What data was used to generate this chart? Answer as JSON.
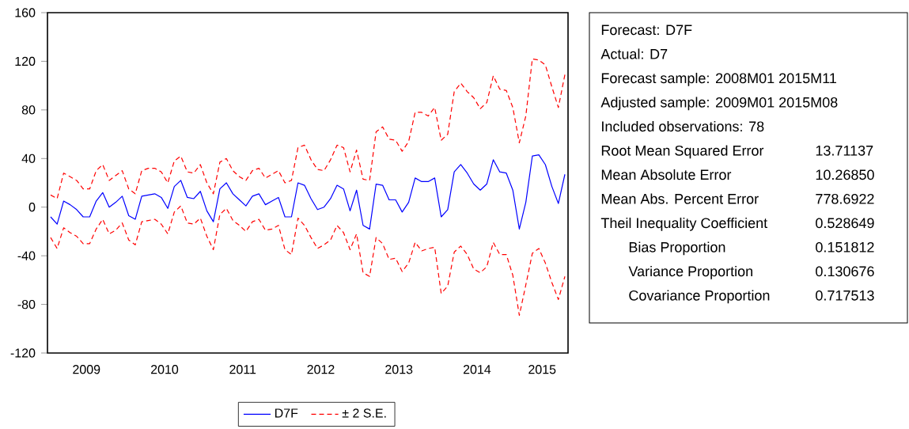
{
  "chart_data": [
    {
      "type": "line",
      "x": [
        "2009-01",
        "2009-02",
        "2009-03",
        "2009-04",
        "2009-05",
        "2009-06",
        "2009-07",
        "2009-08",
        "2009-09",
        "2009-10",
        "2009-11",
        "2009-12",
        "2010-01",
        "2010-02",
        "2010-03",
        "2010-04",
        "2010-05",
        "2010-06",
        "2010-07",
        "2010-08",
        "2010-09",
        "2010-10",
        "2010-11",
        "2010-12",
        "2011-01",
        "2011-02",
        "2011-03",
        "2011-04",
        "2011-05",
        "2011-06",
        "2011-07",
        "2011-08",
        "2011-09",
        "2011-10",
        "2011-11",
        "2011-12",
        "2012-01",
        "2012-02",
        "2012-03",
        "2012-04",
        "2012-05",
        "2012-06",
        "2012-07",
        "2012-08",
        "2012-09",
        "2012-10",
        "2012-11",
        "2012-12",
        "2013-01",
        "2013-02",
        "2013-03",
        "2013-04",
        "2013-05",
        "2013-06",
        "2013-07",
        "2013-08",
        "2013-09",
        "2013-10",
        "2013-11",
        "2013-12",
        "2014-01",
        "2014-02",
        "2014-03",
        "2014-04",
        "2014-05",
        "2014-06",
        "2014-07",
        "2014-08",
        "2014-09",
        "2014-10",
        "2014-11",
        "2014-12",
        "2015-01",
        "2015-02",
        "2015-03",
        "2015-04",
        "2015-05",
        "2015-06",
        "2015-07",
        "2015-08"
      ],
      "series": [
        {
          "name": "D7F",
          "color": "#0000ff",
          "line_style": "solid",
          "values": [
            -8,
            -14,
            5,
            2,
            -2,
            -8,
            -8,
            5,
            12,
            0,
            4,
            9,
            -7,
            -10,
            9,
            10,
            11,
            8,
            -1,
            17,
            22,
            8,
            7,
            13,
            -3,
            -12,
            15,
            20,
            11,
            6,
            1,
            9,
            11,
            2,
            5,
            8,
            -8,
            -8,
            20,
            18,
            7,
            -2,
            0,
            7,
            18,
            15,
            -3,
            14,
            -15,
            -18,
            19,
            18,
            6,
            6,
            -4,
            4,
            24,
            21,
            21,
            24,
            -8,
            -2,
            29,
            35,
            28,
            19,
            14,
            19,
            39,
            29,
            28,
            14,
            -18,
            4,
            42,
            43,
            35,
            17,
            3,
            27
          ]
        },
        {
          "name": "± 2 S.E.",
          "color": "#ff0000",
          "line_style": "dashed",
          "values": [
            10,
            7,
            28,
            25,
            22,
            15,
            15,
            30,
            35,
            22,
            26,
            30,
            15,
            11,
            30,
            32,
            32,
            29,
            20,
            38,
            42,
            29,
            28,
            35,
            20,
            11,
            37,
            40,
            30,
            25,
            22,
            30,
            32,
            24,
            27,
            30,
            20,
            22,
            49,
            51,
            39,
            31,
            30,
            39,
            51,
            49,
            29,
            47,
            23,
            22,
            62,
            66,
            56,
            55,
            46,
            54,
            78,
            78,
            75,
            82,
            55,
            60,
            95,
            102,
            95,
            90,
            81,
            86,
            108,
            97,
            96,
            82,
            53,
            75,
            122,
            121,
            117,
            99,
            82,
            109
          ]
        },
        {
          "color": "#ff0000",
          "line_style": "dashed",
          "values": [
            -25,
            -34,
            -17,
            -21,
            -24,
            -30,
            -30,
            -18,
            -10,
            -22,
            -19,
            -13,
            -27,
            -31,
            -12,
            -11,
            -10,
            -14,
            -22,
            -4,
            1,
            -13,
            -14,
            -9,
            -24,
            -35,
            -6,
            -1,
            -11,
            -15,
            -20,
            -12,
            -10,
            -19,
            -18,
            -15,
            -35,
            -39,
            -9,
            -15,
            -25,
            -34,
            -31,
            -27,
            -15,
            -21,
            -35,
            -22,
            -54,
            -57,
            -25,
            -30,
            -43,
            -42,
            -53,
            -46,
            -29,
            -36,
            -34,
            -33,
            -71,
            -65,
            -37,
            -32,
            -39,
            -51,
            -54,
            -49,
            -29,
            -39,
            -39,
            -56,
            -89,
            -64,
            -38,
            -34,
            -46,
            -62,
            -76,
            -57
          ]
        }
      ],
      "xlim": [
        "2008-12-17",
        "2015-08-16"
      ],
      "xticks": [
        {
          "value": "2009-06-16",
          "label": "2009"
        },
        {
          "value": "2010-06-16",
          "label": "2010"
        },
        {
          "value": "2011-06-16",
          "label": "2011"
        },
        {
          "value": "2012-06-16",
          "label": "2012"
        },
        {
          "value": "2013-06-16",
          "label": "2013"
        },
        {
          "value": "2014-06-16",
          "label": "2014"
        },
        {
          "value": "2015-04-16",
          "label": "2015"
        }
      ],
      "ylim": [
        -120,
        160
      ],
      "yticks": [
        -120,
        -80,
        -40,
        0,
        40,
        80,
        120,
        160
      ],
      "marker": "none",
      "legend": "bottom"
    },
    {
      "type": "other",
      "annotations": [
        "Forecast: D7F",
        "Actual: D7",
        "Forecast sample: 2008M01 2015M11",
        "Adjusted sample: 2009M01 2015M08",
        "Included observations: 78"
      ],
      "categories": [
        "Root Mean Squared Error",
        "Mean Absolute Error",
        "Mean Abs. Percent Error",
        "Theil Inequality Coefficient",
        "Bias Proportion",
        "Variance Proportion",
        "Covariance Proportion"
      ],
      "value_labels": [
        "13.71137",
        "10.26850",
        "778.6922",
        "0.528649",
        "0.151812",
        "0.130676",
        "0.717513"
      ]
    }
  ]
}
